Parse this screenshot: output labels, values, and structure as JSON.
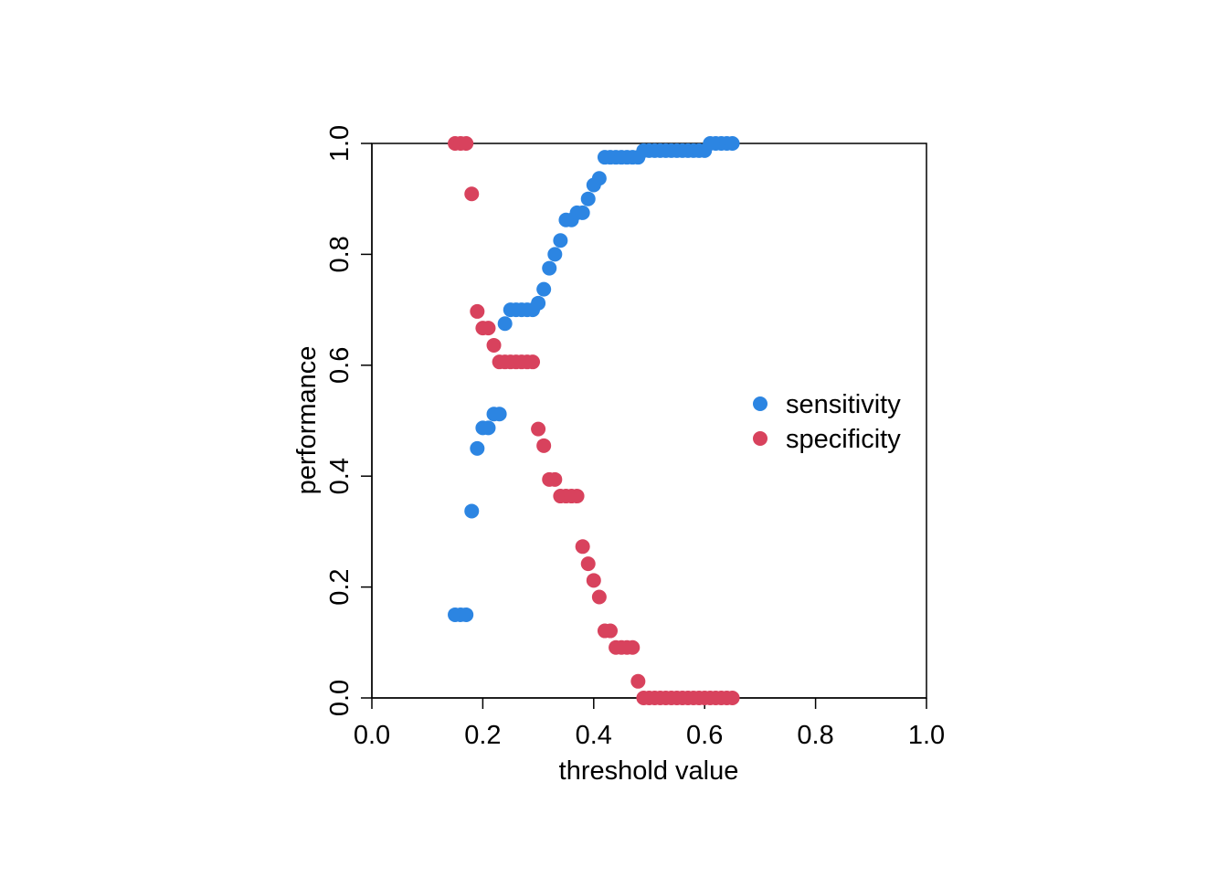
{
  "chart_data": {
    "type": "scatter",
    "title": "",
    "xlabel": "threshold value",
    "ylabel": "performance",
    "xlim": [
      0,
      1
    ],
    "ylim": [
      0,
      1
    ],
    "x_ticks": [
      "0.0",
      "0.2",
      "0.4",
      "0.6",
      "0.8",
      "1.0"
    ],
    "y_ticks": [
      "0.0",
      "0.2",
      "0.4",
      "0.6",
      "0.8",
      "1.0"
    ],
    "grid": false,
    "legend_position": "right",
    "series": [
      {
        "name": "sensitivity",
        "color": "#2c85e2",
        "points": [
          [
            0.15,
            0.15
          ],
          [
            0.16,
            0.15
          ],
          [
            0.17,
            0.15
          ],
          [
            0.18,
            0.337
          ],
          [
            0.19,
            0.45
          ],
          [
            0.2,
            0.487
          ],
          [
            0.21,
            0.487
          ],
          [
            0.22,
            0.512
          ],
          [
            0.23,
            0.512
          ],
          [
            0.24,
            0.675
          ],
          [
            0.25,
            0.7
          ],
          [
            0.26,
            0.7
          ],
          [
            0.27,
            0.7
          ],
          [
            0.28,
            0.7
          ],
          [
            0.29,
            0.7
          ],
          [
            0.3,
            0.712
          ],
          [
            0.31,
            0.737
          ],
          [
            0.32,
            0.775
          ],
          [
            0.33,
            0.8
          ],
          [
            0.34,
            0.825
          ],
          [
            0.35,
            0.862
          ],
          [
            0.36,
            0.862
          ],
          [
            0.37,
            0.875
          ],
          [
            0.38,
            0.875
          ],
          [
            0.39,
            0.9
          ],
          [
            0.4,
            0.925
          ],
          [
            0.41,
            0.937
          ],
          [
            0.42,
            0.975
          ],
          [
            0.43,
            0.975
          ],
          [
            0.44,
            0.975
          ],
          [
            0.45,
            0.975
          ],
          [
            0.46,
            0.975
          ],
          [
            0.47,
            0.975
          ],
          [
            0.48,
            0.975
          ],
          [
            0.49,
            0.987
          ],
          [
            0.5,
            0.987
          ],
          [
            0.51,
            0.987
          ],
          [
            0.52,
            0.987
          ],
          [
            0.53,
            0.987
          ],
          [
            0.54,
            0.987
          ],
          [
            0.55,
            0.987
          ],
          [
            0.56,
            0.987
          ],
          [
            0.57,
            0.987
          ],
          [
            0.58,
            0.987
          ],
          [
            0.59,
            0.987
          ],
          [
            0.6,
            0.987
          ],
          [
            0.61,
            1.0
          ],
          [
            0.62,
            1.0
          ],
          [
            0.63,
            1.0
          ],
          [
            0.64,
            1.0
          ],
          [
            0.65,
            1.0
          ]
        ]
      },
      {
        "name": "specificity",
        "color": "#d8425d",
        "points": [
          [
            0.15,
            1.0
          ],
          [
            0.16,
            1.0
          ],
          [
            0.17,
            1.0
          ],
          [
            0.18,
            0.909
          ],
          [
            0.19,
            0.697
          ],
          [
            0.2,
            0.667
          ],
          [
            0.21,
            0.667
          ],
          [
            0.22,
            0.636
          ],
          [
            0.23,
            0.606
          ],
          [
            0.24,
            0.606
          ],
          [
            0.25,
            0.606
          ],
          [
            0.26,
            0.606
          ],
          [
            0.27,
            0.606
          ],
          [
            0.28,
            0.606
          ],
          [
            0.29,
            0.606
          ],
          [
            0.3,
            0.485
          ],
          [
            0.31,
            0.455
          ],
          [
            0.32,
            0.394
          ],
          [
            0.33,
            0.394
          ],
          [
            0.34,
            0.364
          ],
          [
            0.35,
            0.364
          ],
          [
            0.36,
            0.364
          ],
          [
            0.37,
            0.364
          ],
          [
            0.38,
            0.273
          ],
          [
            0.39,
            0.242
          ],
          [
            0.4,
            0.212
          ],
          [
            0.41,
            0.182
          ],
          [
            0.42,
            0.121
          ],
          [
            0.43,
            0.121
          ],
          [
            0.44,
            0.091
          ],
          [
            0.45,
            0.091
          ],
          [
            0.46,
            0.091
          ],
          [
            0.47,
            0.091
          ],
          [
            0.48,
            0.03
          ],
          [
            0.49,
            0.0
          ],
          [
            0.5,
            0.0
          ],
          [
            0.51,
            0.0
          ],
          [
            0.52,
            0.0
          ],
          [
            0.53,
            0.0
          ],
          [
            0.54,
            0.0
          ],
          [
            0.55,
            0.0
          ],
          [
            0.56,
            0.0
          ],
          [
            0.57,
            0.0
          ],
          [
            0.58,
            0.0
          ],
          [
            0.59,
            0.0
          ],
          [
            0.6,
            0.0
          ],
          [
            0.61,
            0.0
          ],
          [
            0.62,
            0.0
          ],
          [
            0.63,
            0.0
          ],
          [
            0.64,
            0.0
          ],
          [
            0.65,
            0.0
          ]
        ]
      }
    ]
  }
}
